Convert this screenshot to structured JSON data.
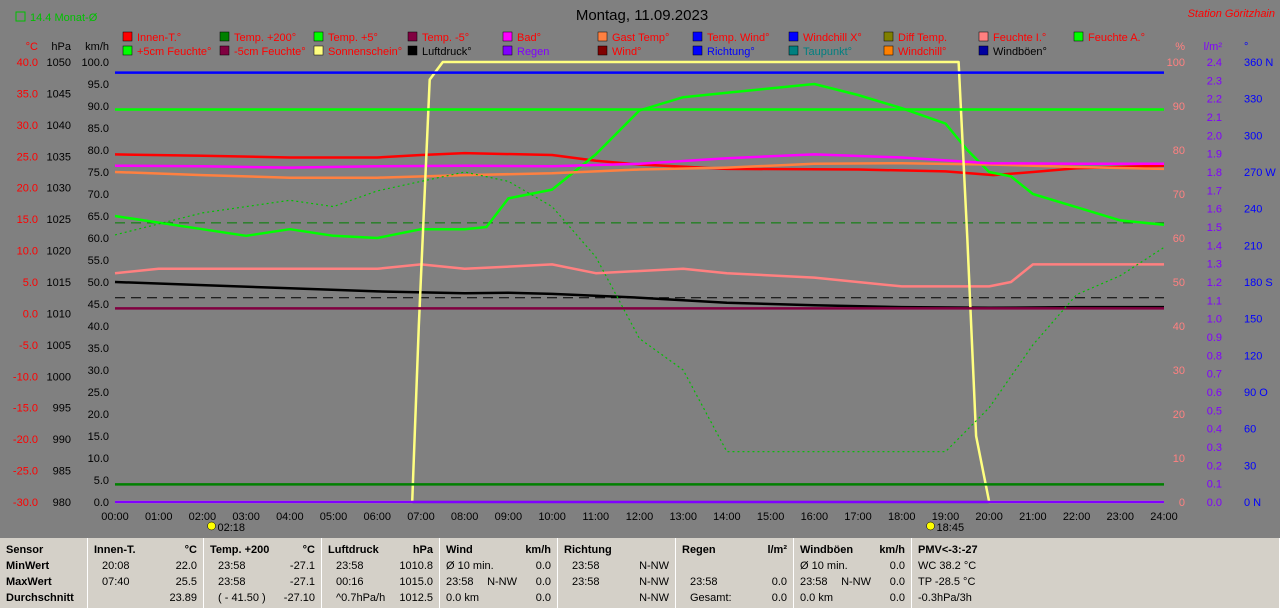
{
  "header": {
    "title": "Montag, 11.09.2023",
    "station": "Station Göritzhain",
    "monthly_avg_label": "14.4 Monat-Ø"
  },
  "colors": {
    "background": "#808080",
    "temp_axis": "#ff0000",
    "left_axis": "#000000",
    "pct_axis": "#ff8080",
    "rain_axis": "#8000ff",
    "deg_axis": "#0000ff",
    "legend_text": "#ff0000"
  },
  "chart_data": {
    "type": "line",
    "title": "Montag, 11.09.2023",
    "x_axis": {
      "range_hours": [
        0,
        24
      ],
      "tick_labels": [
        "00:00",
        "01:00",
        "02:00",
        "03:00",
        "04:00",
        "05:00",
        "06:00",
        "07:00",
        "08:00",
        "09:00",
        "10:00",
        "11:00",
        "12:00",
        "13:00",
        "14:00",
        "15:00",
        "16:00",
        "17:00",
        "18:00",
        "19:00",
        "20:00",
        "21:00",
        "22:00",
        "23:00",
        "24:00"
      ]
    },
    "y_axes": [
      {
        "label": "°C",
        "range": [
          -30,
          40
        ],
        "ticks": [
          "40.0",
          "35.0",
          "30.0",
          "25.0",
          "20.0",
          "15.0",
          "10.0",
          "5.0",
          "0.0",
          "-5.0",
          "-10.0",
          "-15.0",
          "-20.0",
          "-25.0",
          "-30.0"
        ],
        "color": "#ff0000"
      },
      {
        "label": "hPa",
        "range": [
          980,
          1050
        ],
        "ticks": [
          "1050",
          "1045",
          "1040",
          "1035",
          "1030",
          "1025",
          "1020",
          "1015",
          "1010",
          "1005",
          "1000",
          "995",
          "990",
          "985",
          "980"
        ],
        "color": "#000000"
      },
      {
        "label": "km/h",
        "range": [
          0,
          100
        ],
        "ticks": [
          "100.0",
          "95.0",
          "90.0",
          "85.0",
          "80.0",
          "75.0",
          "70.0",
          "65.0",
          "60.0",
          "55.0",
          "50.0",
          "45.0",
          "40.0",
          "35.0",
          "30.0",
          "25.0",
          "20.0",
          "15.0",
          "10.0",
          "5.0",
          "0.0"
        ],
        "color": "#000000"
      },
      {
        "label": "%",
        "range": [
          0,
          100
        ],
        "ticks": [
          "100",
          "90",
          "80",
          "70",
          "60",
          "50",
          "40",
          "30",
          "20",
          "10",
          "0"
        ],
        "color": "#ff8080"
      },
      {
        "label": "l/m²",
        "range": [
          0,
          2.4
        ],
        "ticks": [
          "2.4",
          "2.3",
          "2.2",
          "2.1",
          "2.0",
          "1.9",
          "1.8",
          "1.7",
          "1.6",
          "1.5",
          "1.4",
          "1.3",
          "1.2",
          "1.1",
          "1.0",
          "0.9",
          "0.8",
          "0.7",
          "0.6",
          "0.5",
          "0.4",
          "0.3",
          "0.2",
          "0.1",
          "0.0"
        ],
        "color": "#8000ff"
      },
      {
        "label": "°",
        "range": [
          0,
          360
        ],
        "ticks": [
          "360 N",
          "330",
          "300",
          "270 W",
          "240",
          "210",
          "180 S",
          "150",
          "120",
          "90 O",
          "60",
          "30",
          "0 N"
        ],
        "color": "#0000ff"
      }
    ],
    "legend": [
      {
        "name": "Innen-T.°",
        "color": "#ff0000"
      },
      {
        "name": "Temp. +200°",
        "color": "#008000"
      },
      {
        "name": "Temp. +5°",
        "color": "#00ff00"
      },
      {
        "name": "Temp. -5°",
        "color": "#800040"
      },
      {
        "name": "Bad°",
        "color": "#ff00ff"
      },
      {
        "name": "Gast Temp°",
        "color": "#ff8040"
      },
      {
        "name": "Temp. Wind°",
        "color": "#0000ff"
      },
      {
        "name": "Windchill X°",
        "color": "#0000ff"
      },
      {
        "name": "Diff Temp.",
        "color": "#808000"
      },
      {
        "name": "Feuchte I.°",
        "color": "#ff8080"
      },
      {
        "name": "Feuchte A.°",
        "color": "#00ff00"
      },
      {
        "name": "+5cm Feuchte°",
        "color": "#00ff00"
      },
      {
        "name": "-5cm Feuchte°",
        "color": "#800040"
      },
      {
        "name": "Sonnenschein°",
        "color": "#ffff80"
      },
      {
        "name": "Luftdruck°",
        "color": "#000000"
      },
      {
        "name": "Regen",
        "color": "#8000ff"
      },
      {
        "name": "Wind°",
        "color": "#800000"
      },
      {
        "name": "Richtung°",
        "color": "#0000ff"
      },
      {
        "name": "Taupunkt°",
        "color": "#008080"
      },
      {
        "name": "Windchill°",
        "color": "#ff8000"
      },
      {
        "name": "Windböen°",
        "color": "#0000a0"
      }
    ],
    "series": [
      {
        "name": "Innen-T.°",
        "color": "#ff0000",
        "axis": "°C",
        "points": [
          [
            0,
            25.3
          ],
          [
            2,
            25.1
          ],
          [
            4,
            24.8
          ],
          [
            6,
            24.8
          ],
          [
            7,
            25.2
          ],
          [
            8,
            25.5
          ],
          [
            10,
            25.2
          ],
          [
            11,
            24.3
          ],
          [
            12,
            23.7
          ],
          [
            14,
            23.0
          ],
          [
            17,
            22.9
          ],
          [
            19,
            22.6
          ],
          [
            20.1,
            22.0
          ],
          [
            21,
            22.5
          ],
          [
            22,
            23.1
          ],
          [
            24,
            23.5
          ]
        ]
      },
      {
        "name": "Feuchte A.°",
        "color": "#00ff00",
        "axis": "%",
        "points": [
          [
            0,
            65
          ],
          [
            1,
            63.5
          ],
          [
            2,
            62
          ],
          [
            3,
            60.5
          ],
          [
            4,
            62
          ],
          [
            5,
            60.5
          ],
          [
            6,
            60
          ],
          [
            7,
            62
          ],
          [
            8,
            62
          ],
          [
            8.5,
            62.5
          ],
          [
            9,
            69
          ],
          [
            10,
            71
          ],
          [
            11,
            79
          ],
          [
            12,
            89
          ],
          [
            13,
            92
          ],
          [
            14,
            93
          ],
          [
            15,
            94
          ],
          [
            16,
            95
          ],
          [
            17,
            92.5
          ],
          [
            18,
            89.5
          ],
          [
            19,
            86
          ],
          [
            19.5,
            80
          ],
          [
            20,
            75
          ],
          [
            20.5,
            74
          ],
          [
            21,
            70
          ],
          [
            22,
            67
          ],
          [
            23,
            64
          ],
          [
            24,
            63
          ]
        ]
      },
      {
        "name": "Luftdruck°",
        "color": "#000000",
        "axis": "hPa",
        "points": [
          [
            0,
            1015.0
          ],
          [
            2,
            1014.5
          ],
          [
            4,
            1014.0
          ],
          [
            6,
            1013.5
          ],
          [
            8,
            1013.2
          ],
          [
            9,
            1013.3
          ],
          [
            10,
            1013.1
          ],
          [
            12,
            1012.5
          ],
          [
            14,
            1011.7
          ],
          [
            16,
            1011.3
          ],
          [
            18,
            1011.0
          ],
          [
            20,
            1010.9
          ],
          [
            22,
            1011.0
          ],
          [
            24,
            1011.0
          ]
        ]
      },
      {
        "name": "Feuchte I.°",
        "color": "#ff8080",
        "axis": "%",
        "points": [
          [
            0,
            52
          ],
          [
            1,
            53
          ],
          [
            3,
            53
          ],
          [
            5,
            53
          ],
          [
            6,
            53
          ],
          [
            7,
            54
          ],
          [
            8,
            53
          ],
          [
            10,
            54
          ],
          [
            11,
            52
          ],
          [
            13,
            53
          ],
          [
            14,
            52
          ],
          [
            16,
            51
          ],
          [
            18,
            49
          ],
          [
            20,
            49
          ],
          [
            20.5,
            50
          ],
          [
            21,
            54
          ],
          [
            22,
            54
          ],
          [
            24,
            54
          ]
        ]
      },
      {
        "name": "Gast Temp°",
        "color": "#ff8040",
        "axis": "°C",
        "points": [
          [
            0,
            22.5
          ],
          [
            2,
            22.0
          ],
          [
            4,
            21.6
          ],
          [
            6,
            21.6
          ],
          [
            8,
            22.0
          ],
          [
            10,
            22.3
          ],
          [
            12,
            22.9
          ],
          [
            14,
            23.2
          ],
          [
            16,
            23.8
          ],
          [
            18,
            23.9
          ],
          [
            20,
            23.7
          ],
          [
            22,
            23.3
          ],
          [
            24,
            23.0
          ]
        ]
      },
      {
        "name": "Bad°",
        "color": "#ff00ff",
        "axis": "°C",
        "points": [
          [
            0,
            23.5
          ],
          [
            2,
            23.4
          ],
          [
            4,
            23.2
          ],
          [
            6,
            23.4
          ],
          [
            8,
            23.5
          ],
          [
            10,
            23.4
          ],
          [
            12,
            23.8
          ],
          [
            14,
            24.7
          ],
          [
            16,
            25.3
          ],
          [
            18,
            24.8
          ],
          [
            20,
            23.9
          ],
          [
            22,
            23.8
          ],
          [
            24,
            23.8
          ]
        ]
      },
      {
        "name": "Sonnenschein°",
        "color": "#ffff80",
        "axis": "%",
        "points": [
          [
            0,
            0
          ],
          [
            6.8,
            0
          ],
          [
            6.95,
            40
          ],
          [
            7.2,
            96
          ],
          [
            7.5,
            100
          ],
          [
            19.3,
            100
          ],
          [
            19.5,
            60
          ],
          [
            19.7,
            15
          ],
          [
            20,
            0
          ],
          [
            24,
            0
          ]
        ]
      },
      {
        "name": "Windböen°",
        "color": "#0000ff",
        "axis": "km/h",
        "points": [
          [
            0,
            97.6
          ],
          [
            24,
            97.6
          ]
        ]
      },
      {
        "name": "Temp. +5°",
        "color": "#00ff00",
        "axis": "km/h",
        "points": [
          [
            0,
            89.2
          ],
          [
            24,
            89.2
          ]
        ]
      },
      {
        "name": "Temp. +200°",
        "color": "#008000",
        "axis": "km/h",
        "points": [
          [
            0,
            4.0
          ],
          [
            24,
            4.0
          ]
        ]
      },
      {
        "name": "-5cm Feuchte°",
        "color": "#800040",
        "axis": "km/h",
        "points": [
          [
            0,
            44.0
          ],
          [
            24,
            44.0
          ]
        ]
      },
      {
        "name": "Regen",
        "color": "#8000ff",
        "axis": "l/m²",
        "points": [
          [
            0,
            0
          ],
          [
            24,
            0
          ]
        ]
      },
      {
        "name": "Taupunkt°",
        "color": "#00c000",
        "axis": "°C",
        "style": "dotted",
        "points": [
          [
            0,
            12.5
          ],
          [
            2,
            16.0
          ],
          [
            4,
            18.0
          ],
          [
            5,
            17.0
          ],
          [
            6,
            19.5
          ],
          [
            7,
            21.0
          ],
          [
            8,
            22.5
          ],
          [
            9,
            21.0
          ],
          [
            10,
            17.0
          ],
          [
            11,
            9.0
          ],
          [
            12,
            -4.0
          ],
          [
            13,
            -9.0
          ],
          [
            14,
            -22.0
          ],
          [
            15,
            -22.0
          ],
          [
            18,
            -22.0
          ],
          [
            19,
            -22.0
          ],
          [
            20,
            -15.0
          ],
          [
            21,
            -5.0
          ],
          [
            22,
            3.0
          ],
          [
            23,
            6.0
          ],
          [
            24,
            10.5
          ]
        ]
      }
    ],
    "reference_lines": [
      {
        "name": "14.4 Monat-Ø",
        "color": "#008000",
        "axis": "°C",
        "value": 14.4,
        "style": "dashed"
      },
      {
        "color": "#000000",
        "axis": "hPa",
        "value": 1012.5,
        "style": "dashed"
      }
    ],
    "markers": [
      {
        "label": "02:18",
        "hour": 2.3,
        "icon": "sunrise-icon"
      },
      {
        "label": "18:45",
        "hour": 18.75,
        "icon": "sunset-icon"
      }
    ],
    "grid": false
  },
  "footer": {
    "row_labels": [
      "Sensor",
      "MinWert",
      "MaxWert",
      "Durchschnitt"
    ],
    "columns": [
      {
        "title": "Innen-T.",
        "unit": "°C",
        "rows": [
          [
            "20:08",
            "22.0"
          ],
          [
            "07:40",
            "25.5"
          ],
          [
            "",
            "23.89"
          ]
        ]
      },
      {
        "title": "Temp. +200",
        "unit": "°C",
        "rows": [
          [
            "23:58",
            "-27.1"
          ],
          [
            "23:58",
            "-27.1"
          ],
          [
            "( - 41.50 )",
            "-27.10"
          ]
        ]
      },
      {
        "title": "Luftdruck",
        "unit": "hPa",
        "rows": [
          [
            "23:58",
            "1010.8"
          ],
          [
            "00:16",
            "1015.0"
          ],
          [
            "^0.7hPa/h",
            "1012.5"
          ]
        ]
      },
      {
        "title": "Wind",
        "unit": "km/h",
        "rows": [
          [
            "Ø 10 min.",
            "",
            "0.0"
          ],
          [
            "23:58",
            "N-NW",
            "0.0"
          ],
          [
            "0.0 km",
            "",
            "0.0"
          ]
        ]
      },
      {
        "title": "Richtung",
        "unit": "",
        "rows": [
          [
            "23:58",
            "N-NW"
          ],
          [
            "23:58",
            "N-NW"
          ],
          [
            "",
            "N-NW"
          ]
        ]
      },
      {
        "title": "Regen",
        "unit": "l/m²",
        "rows": [
          [
            "",
            ""
          ],
          [
            "23:58",
            "0.0"
          ],
          [
            "Gesamt:",
            "0.0"
          ]
        ]
      },
      {
        "title": "Windböen",
        "unit": "km/h",
        "rows": [
          [
            "Ø 10 min.",
            "",
            "0.0"
          ],
          [
            "23:58",
            "N-NW",
            "0.0"
          ],
          [
            "0.0 km",
            "",
            "0.0"
          ]
        ]
      },
      {
        "title": "PMV<-3:-27",
        "unit": "",
        "rows": [
          [
            "WC 38.2 °C"
          ],
          [
            "TP -28.5 °C"
          ],
          [
            "-0.3hPa/3h"
          ]
        ]
      }
    ]
  }
}
